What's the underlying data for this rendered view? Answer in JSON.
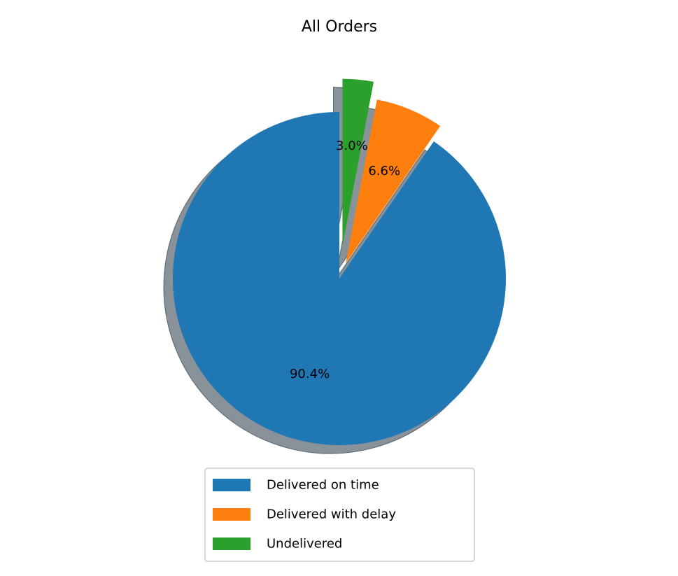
{
  "chart_data": {
    "type": "pie",
    "title": "All Orders",
    "labels": [
      "Delivered on time",
      "Delivered with delay",
      "Undelivered"
    ],
    "values": [
      90.4,
      6.6,
      3.0
    ],
    "percent_labels": [
      "90.4%",
      "6.6%",
      "3.0%"
    ],
    "colors": [
      "#1f77b4",
      "#ff7f0e",
      "#2ca02c"
    ],
    "explode": [
      0,
      0.1,
      0.2
    ],
    "shadow": true,
    "start_angle": 90,
    "direction": "counterclockwise",
    "legend_position": "bottom-center"
  }
}
